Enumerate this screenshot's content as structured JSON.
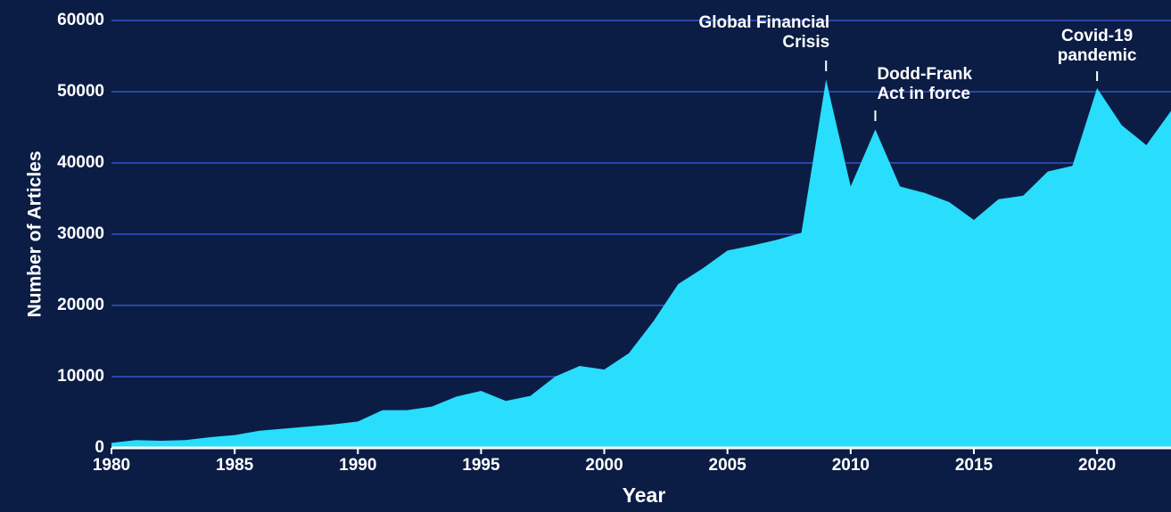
{
  "chart_data": {
    "type": "area",
    "x": [
      1980,
      1981,
      1982,
      1983,
      1984,
      1985,
      1986,
      1987,
      1988,
      1989,
      1990,
      1991,
      1992,
      1993,
      1994,
      1995,
      1996,
      1997,
      1998,
      1999,
      2000,
      2001,
      2002,
      2003,
      2004,
      2005,
      2006,
      2007,
      2008,
      2009,
      2010,
      2011,
      2012,
      2013,
      2014,
      2015,
      2016,
      2017,
      2018,
      2019,
      2020,
      2021,
      2022,
      2023
    ],
    "values": [
      700,
      1100,
      1000,
      1100,
      1500,
      1800,
      2400,
      2700,
      3000,
      3300,
      3700,
      5300,
      5300,
      5800,
      7200,
      8000,
      6600,
      7300,
      10000,
      11500,
      11000,
      13300,
      17800,
      23000,
      25200,
      27700,
      28400,
      29200,
      30200,
      51700,
      36700,
      44700,
      36700,
      35800,
      34500,
      32000,
      34900,
      35400,
      38800,
      39600,
      50500,
      45300,
      42500,
      47300
    ],
    "color": "#29ddfc",
    "xlabel": "Year",
    "ylabel": "Number of Articles",
    "xlim": [
      1980,
      2023
    ],
    "xticks": [
      1980,
      1985,
      1990,
      1995,
      2000,
      2005,
      2010,
      2015,
      2020
    ],
    "ylim": [
      0,
      60000
    ],
    "yticks": [
      0,
      10000,
      20000,
      30000,
      40000,
      50000,
      60000
    ],
    "grid": true,
    "annotations": [
      {
        "lines": [
          "Global Financial",
          "Crisis"
        ],
        "x": 2009
      },
      {
        "lines": [
          "Dodd-Frank",
          "Act in force"
        ],
        "x": 2011
      },
      {
        "lines": [
          "Covid-19",
          "pandemic"
        ],
        "x": 2020
      }
    ]
  }
}
